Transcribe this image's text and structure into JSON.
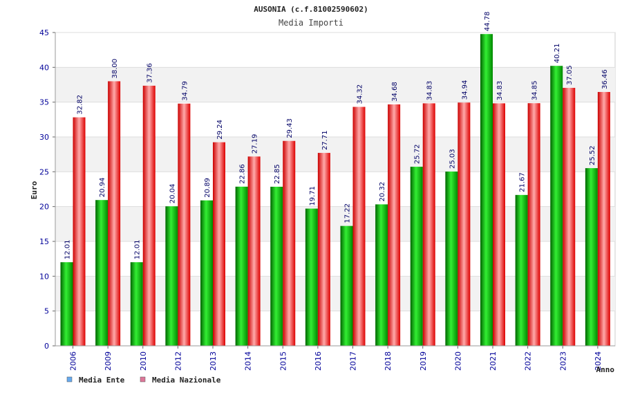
{
  "chart_data": {
    "type": "bar",
    "title": "AUSONIA (c.f.81002590602)",
    "subtitle": "Media Importi",
    "ylabel": "Euro",
    "xlabel": "Anno",
    "ylim": [
      0,
      45
    ],
    "yticks": [
      0,
      5,
      10,
      15,
      20,
      25,
      30,
      35,
      40,
      45
    ],
    "grid": true,
    "legend_position": "bottom-left",
    "categories": [
      "2006",
      "2009",
      "2010",
      "2012",
      "2013",
      "2014",
      "2015",
      "2016",
      "2017",
      "2018",
      "2019",
      "2020",
      "2021",
      "2022",
      "2023",
      "2024"
    ],
    "series": [
      {
        "name": "Media Ente",
        "color": "#00aa00",
        "legend_color": "#66aaee",
        "values": [
          12.01,
          20.94,
          12.01,
          20.04,
          20.89,
          22.86,
          22.85,
          19.71,
          17.22,
          20.32,
          25.72,
          25.03,
          44.78,
          21.67,
          40.21,
          25.52
        ],
        "labels": [
          "12.01",
          "20.94",
          "12.01",
          "20.04",
          "20.89",
          "22.86",
          "22.85",
          "19.71",
          "17.22",
          "20.32",
          "25.72",
          "25.03",
          "44.78",
          "21.67",
          "40.21",
          "25.52"
        ]
      },
      {
        "name": "Media Nazionale",
        "color": "#ee1111",
        "legend_color": "#dd7799",
        "values": [
          32.82,
          38.0,
          37.36,
          34.79,
          29.24,
          27.19,
          29.43,
          27.71,
          34.32,
          34.68,
          34.83,
          34.94,
          34.83,
          34.85,
          37.05,
          36.46
        ],
        "labels": [
          "32.82",
          "38.00",
          "37.36",
          "34.79",
          "29.24",
          "27.19",
          "29.43",
          "27.71",
          "34.32",
          "34.68",
          "34.83",
          "34.94",
          "34.83",
          "34.85",
          "37.05",
          "36.46"
        ]
      }
    ]
  }
}
